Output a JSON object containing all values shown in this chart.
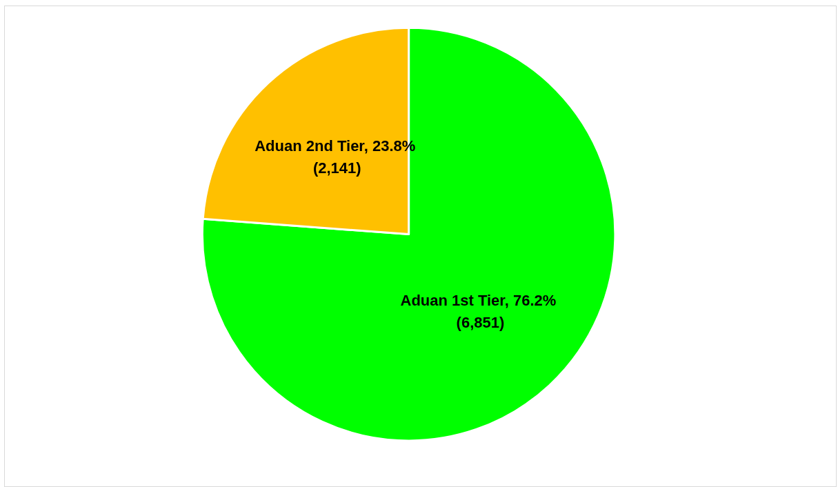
{
  "chart_data": {
    "type": "pie",
    "categories": [
      "Aduan 1st Tier",
      "Aduan 2nd Tier"
    ],
    "values": [
      6851,
      2141
    ],
    "colors": [
      "#00ff00",
      "#ffc000"
    ],
    "value_labels": [
      "76.2% (6,851)",
      "23.8% (2,141)"
    ],
    "legend": false
  }
}
